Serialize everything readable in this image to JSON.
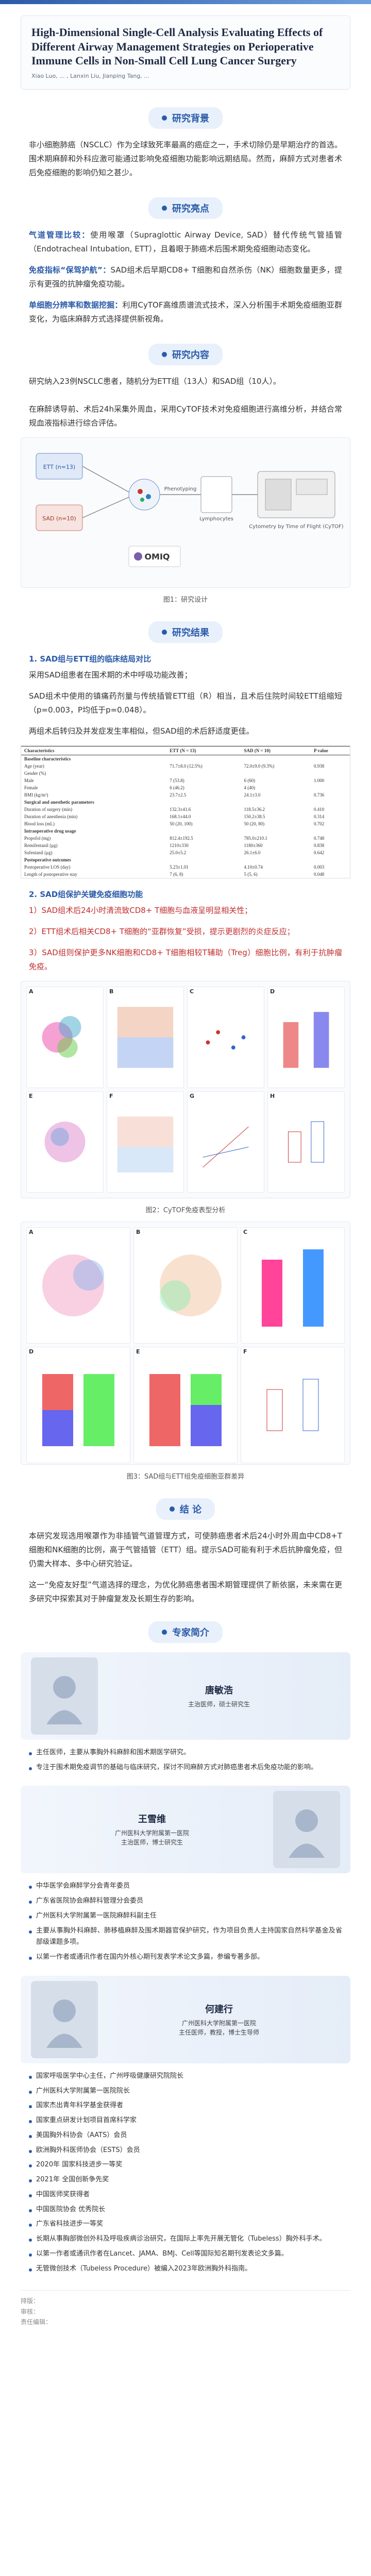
{
  "paper": {
    "title": "High-Dimensional Single-Cell Analysis Evaluating Effects of Different Airway Management Strategies on Perioperative Immune Cells in Non-Small Cell Lung Cancer Surgery",
    "authors": "Xiao Luo, ... , Lanxin Liu, Jianping Tang, ..."
  },
  "sections": {
    "background": "研究背景",
    "highlights": "研究亮点",
    "content": "研究内容",
    "results": "研究结果",
    "conclusion": "结 论",
    "experts": "专家简介"
  },
  "background_text": "非小细胞肺癌（NSCLC）作为全球致死率最高的癌症之一，手术切除仍是早期治疗的首选。围术期麻醉和外科应激可能通过影响免疫细胞功能影响远期结局。然而，麻醉方式对患者术后免疫细胞的影响仍知之甚少。",
  "highlights": {
    "item1_label": "气道管理比较：",
    "item1_text": "使用喉罩（Supraglottic Airway Device, SAD）替代传统气管插管（Endotracheal Intubation, ETT），且着眼于肺癌术后围术期免疫细胞动态变化。",
    "item2_label": "免疫指标“保驾护航”：",
    "item2_text": "SAD组术后早期CD8+ T细胞和自然杀伤（NK）细胞数量更多，提示有更强的抗肿瘤免疫功能。",
    "item3_label": "单细胞分辨率和数据挖掘：",
    "item3_text": "利用CyTOF高维质谱流式技术，深入分析围手术期免疫细胞亚群变化，为临床麻醉方式选择提供新视角。"
  },
  "content_text": "研究纳入23例NSCLC患者，随机分为ETT组（13人）和SAD组（10人）。\n\n在麻醉诱导前、术后24h采集外周血，采用CyTOF技术对免疫细胞进行高维分析，并结合常规血液指标进行综合评估。",
  "fig1": {
    "caption": "图1：研究设计",
    "labels": [
      "ETT (n=13)",
      "SAD (n=10)",
      "Phenotyping",
      "Lymphocytes",
      "Cytometry by Time of Flight (CyTOF)"
    ],
    "brand": "OMIQ"
  },
  "results": {
    "r1_heading": "1. SAD组与ETT组的临床结局对比",
    "r1_intro": "采用SAD组患者在围术期的术中呼吸功能改善；",
    "r1_text": "SAD组术中使用的镇痛药剂量与传统插管ETT组（R）相当，且术后住院时间较ETT组缩短（p=0.003，P均低于p=0.048）。",
    "r1_text2": "两组术后转归及并发症发生率相似，但SAD组的术后舒适度更佳。",
    "table_headers": [
      "Characteristics",
      "ETT (N = 13)",
      "SAD (N = 10)",
      "P value"
    ],
    "table_rows": [
      {
        "group": true,
        "cells": [
          "Baseline characteristics",
          "",
          "",
          ""
        ]
      },
      {
        "group": false,
        "cells": [
          "Age (year)",
          "71.7±8.0 (12.5%)",
          "72.0±9.0 (9.3%)",
          "0.938"
        ]
      },
      {
        "group": false,
        "cells": [
          "Gender (%)",
          "",
          "",
          ""
        ]
      },
      {
        "group": false,
        "cells": [
          "Male",
          "7 (53.8)",
          "6 (60)",
          "1.000"
        ]
      },
      {
        "group": false,
        "cells": [
          "Female",
          "6 (46.2)",
          "4 (40)",
          ""
        ]
      },
      {
        "group": false,
        "cells": [
          "BMI (kg/m²)",
          "23.7±2.5",
          "24.1±3.0",
          "0.736"
        ]
      },
      {
        "group": true,
        "cells": [
          "Surgical and anesthetic parameters",
          "",
          "",
          ""
        ]
      },
      {
        "group": false,
        "cells": [
          "Duration of surgery (min)",
          "132.3±41.6",
          "118.5±36.2",
          "0.410"
        ]
      },
      {
        "group": false,
        "cells": [
          "Duration of anesthesia (min)",
          "168.1±44.0",
          "150.2±38.5",
          "0.314"
        ]
      },
      {
        "group": false,
        "cells": [
          "Blood loss (mL)",
          "50 (20, 100)",
          "50 (20, 80)",
          "0.702"
        ]
      },
      {
        "group": true,
        "cells": [
          "Intraoperative drug usage",
          "",
          "",
          ""
        ]
      },
      {
        "group": false,
        "cells": [
          "Propofol (mg)",
          "812.4±192.5",
          "785.0±210.1",
          "0.748"
        ]
      },
      {
        "group": false,
        "cells": [
          "Remifentanil (μg)",
          "1210±330",
          "1180±360",
          "0.838"
        ]
      },
      {
        "group": false,
        "cells": [
          "Sufentanil (μg)",
          "25.0±5.2",
          "26.1±6.0",
          "0.642"
        ]
      },
      {
        "group": true,
        "cells": [
          "Postoperative outcomes",
          "",
          "",
          ""
        ]
      },
      {
        "group": false,
        "cells": [
          "Postoperative LOS (day)",
          "5.23±1.01",
          "4.10±0.74",
          "0.003"
        ]
      },
      {
        "group": false,
        "cells": [
          "Length of postoperative stay",
          "7 (6, 8)",
          "5 (5, 6)",
          "0.048"
        ]
      }
    ],
    "r2_heading": "2. SAD组保护关键免疫细胞功能",
    "r2_items": [
      "1）SAD组术后24小时清流致CD8+ T细胞与血液呈明显相关性；",
      "2）ETT组术后相关CD8+ T细胞的“亚群恢复”受损，提示更剧烈的炎症反应；",
      "3）SAD组则保护更多NK细胞和CD8+ T细胞相较T辅助（Treg）细胞比例，有利于抗肿瘤免疫。"
    ],
    "fig2_caption": "图2：CyTOF免疫表型分析",
    "fig3_caption": "图3：SAD组与ETT组免疫细胞亚群差异"
  },
  "conclusion_text1": "本研究发现选用喉罩作为非插管气道管理方式，可使肺癌患者术后24小时外周血中CD8+T细胞和NK细胞的比例，高于气管插管（ETT）组。提示SAD可能有利于术后抗肿瘤免疫，但仍需大样本、多中心研究验证。",
  "conclusion_text2": "这一“免疫友好型”气道选择的理念，为优化肺癌患者围术期管理提供了新依据，未来需在更多研究中探索其对于肿瘤复发及长期生存的影响。",
  "experts": [
    {
      "name": "唐敏浩",
      "title": "主治医师，硕士研究生",
      "bullets": [
        "主任医师，主要从事胸外科麻醉和围术期医学研究。",
        "专注于围术期免疫调节的基础与临床研究，探讨不同麻醉方式对肺癌患者术后免疫功能的影响。"
      ]
    },
    {
      "name": "王雪维",
      "title": "广州医科大学附属第一医院\n主治医师，博士研究生",
      "bullets": [
        "中华医学会麻醉学分会青年委员",
        "广东省医院协会麻醉科管理分会委员",
        "广州医科大学附属第一医院麻醉科副主任",
        "主要从事胸外科麻醉、肺移植麻醉及围术期器官保护研究，作为项目负责人主持国家自然科学基金及省部级课题多项。",
        "以第一作者或通讯作者在国内外核心期刊发表学术论文多篇，参编专著多部。"
      ]
    },
    {
      "name": "何建行",
      "title": "广州医科大学附属第一医院\n主任医师，教授，博士生导师",
      "bullets": [
        "国家呼吸医学中心主任，广州呼吸健康研究院院长",
        "广州医科大学附属第一医院院长",
        "国家杰出青年科学基金获得者",
        "国家重点研发计划项目首席科学家",
        "美国胸外科协会（AATS）会员",
        "欧洲胸外科医师协会（ESTS）会员",
        "2020年 国家科技进步一等奖",
        "2021年 全国创新争先奖",
        "中国医师奖获得者",
        "中国医院协会 优秀院长",
        "广东省科技进步一等奖",
        "长期从事胸部微创外科及呼吸疾病诊治研究，在国际上率先开展无管化（Tubeless）胸外科手术。",
        "以第一作者或通讯作者在Lancet、JAMA、BMJ、Cell等国际知名期刊发表论文多篇。",
        "无管微创技术（Tubeless Procedure）被编入2023年欧洲胸外科指南。"
      ]
    }
  ],
  "footer": {
    "line1": "排版：",
    "line2": "审核：",
    "line3": "责任编辑："
  }
}
